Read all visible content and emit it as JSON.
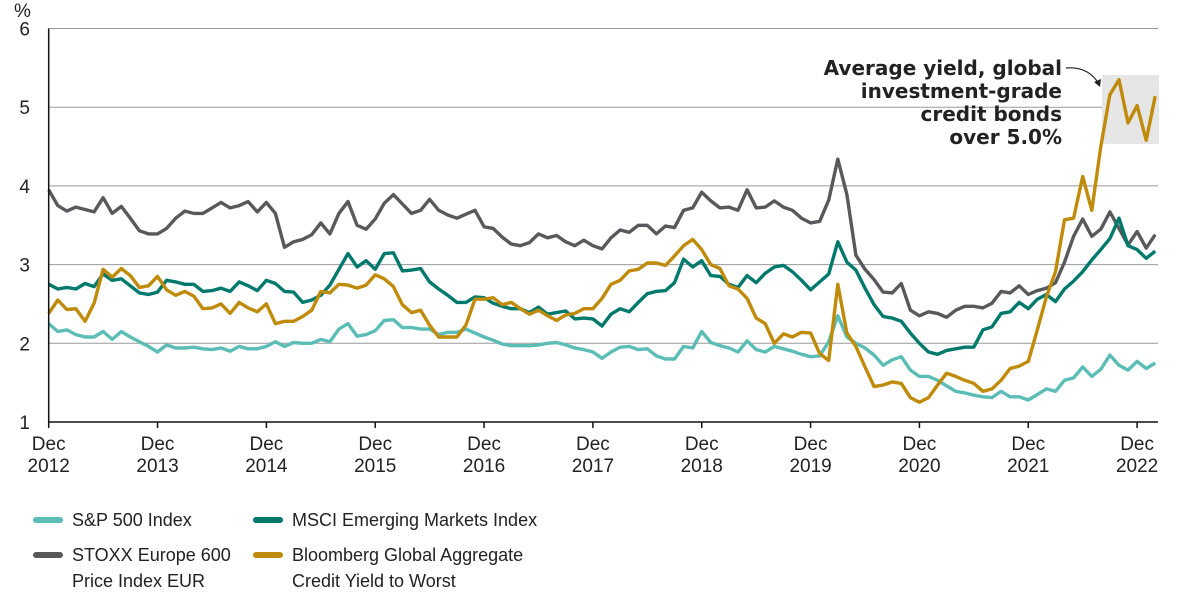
{
  "chart_data": {
    "type": "line",
    "ylabel": "%",
    "ylim": [
      1,
      6
    ],
    "yticks": [
      "1",
      "2",
      "3",
      "4",
      "5",
      "6"
    ],
    "grid": true,
    "x_start": "2012-12",
    "frequency": "monthly",
    "xticks": [
      {
        "line1": "Dec",
        "line2": "2012"
      },
      {
        "line1": "Dec",
        "line2": "2013"
      },
      {
        "line1": "Dec",
        "line2": "2014"
      },
      {
        "line1": "Dec",
        "line2": "2015"
      },
      {
        "line1": "Dec",
        "line2": "2016"
      },
      {
        "line1": "Dec",
        "line2": "2017"
      },
      {
        "line1": "Dec",
        "line2": "2018"
      },
      {
        "line1": "Dec",
        "line2": "2019"
      },
      {
        "line1": "Dec",
        "line2": "2020"
      },
      {
        "line1": "Dec",
        "line2": "2021"
      },
      {
        "line1": "Dec",
        "line2": "2022"
      }
    ],
    "legend_placement": "bottom",
    "series": [
      {
        "name": "S&P 500 Index",
        "color": "#5bbdb5",
        "values": [
          2.25,
          2.15,
          2.17,
          2.11,
          2.08,
          2.08,
          2.15,
          2.05,
          2.15,
          2.08,
          2.02,
          1.96,
          1.89,
          1.98,
          1.94,
          1.94,
          1.95,
          1.93,
          1.92,
          1.94,
          1.9,
          1.96,
          1.93,
          1.93,
          1.96,
          2.02,
          1.96,
          2.01,
          2.0,
          2.0,
          2.05,
          2.02,
          2.18,
          2.25,
          2.09,
          2.11,
          2.16,
          2.29,
          2.3,
          2.2,
          2.2,
          2.18,
          2.18,
          2.11,
          2.14,
          2.14,
          2.18,
          2.13,
          2.08,
          2.04,
          1.99,
          1.97,
          1.97,
          1.97,
          1.98,
          2.0,
          2.01,
          1.98,
          1.94,
          1.92,
          1.89,
          1.81,
          1.89,
          1.95,
          1.96,
          1.92,
          1.93,
          1.84,
          1.8,
          1.8,
          1.96,
          1.94,
          2.15,
          2.01,
          1.97,
          1.94,
          1.89,
          2.03,
          1.92,
          1.89,
          1.96,
          1.93,
          1.9,
          1.86,
          1.83,
          1.84,
          2.02,
          2.35,
          2.08,
          2.0,
          1.94,
          1.85,
          1.72,
          1.79,
          1.83,
          1.66,
          1.58,
          1.58,
          1.53,
          1.46,
          1.39,
          1.37,
          1.34,
          1.32,
          1.31,
          1.39,
          1.32,
          1.32,
          1.28,
          1.35,
          1.42,
          1.39,
          1.53,
          1.56,
          1.7,
          1.58,
          1.67,
          1.85,
          1.72,
          1.66,
          1.77,
          1.68,
          1.75
        ]
      },
      {
        "name": "STOXX Europe 600\nPrice Index EUR",
        "color": "#58595b",
        "values": [
          3.95,
          3.75,
          3.68,
          3.73,
          3.7,
          3.67,
          3.85,
          3.65,
          3.74,
          3.59,
          3.43,
          3.39,
          3.39,
          3.46,
          3.59,
          3.68,
          3.65,
          3.65,
          3.72,
          3.79,
          3.72,
          3.75,
          3.8,
          3.67,
          3.79,
          3.65,
          3.22,
          3.29,
          3.32,
          3.38,
          3.53,
          3.39,
          3.65,
          3.8,
          3.5,
          3.45,
          3.58,
          3.78,
          3.89,
          3.77,
          3.65,
          3.69,
          3.83,
          3.69,
          3.63,
          3.59,
          3.64,
          3.69,
          3.48,
          3.46,
          3.35,
          3.26,
          3.24,
          3.28,
          3.39,
          3.34,
          3.37,
          3.29,
          3.24,
          3.31,
          3.24,
          3.2,
          3.34,
          3.44,
          3.41,
          3.5,
          3.5,
          3.39,
          3.49,
          3.47,
          3.69,
          3.72,
          3.92,
          3.81,
          3.72,
          3.73,
          3.69,
          3.95,
          3.72,
          3.73,
          3.81,
          3.73,
          3.69,
          3.59,
          3.53,
          3.55,
          3.82,
          4.34,
          3.89,
          3.12,
          2.94,
          2.81,
          2.65,
          2.64,
          2.76,
          2.42,
          2.35,
          2.4,
          2.38,
          2.33,
          2.42,
          2.47,
          2.47,
          2.45,
          2.51,
          2.66,
          2.64,
          2.73,
          2.62,
          2.67,
          2.7,
          2.77,
          3.03,
          3.36,
          3.58,
          3.36,
          3.45,
          3.67,
          3.46,
          3.25,
          3.42,
          3.21,
          3.38
        ]
      },
      {
        "name": "MSCI Emerging Markets Index",
        "color": "#00796d",
        "values": [
          2.75,
          2.69,
          2.71,
          2.69,
          2.76,
          2.72,
          2.88,
          2.8,
          2.82,
          2.73,
          2.64,
          2.62,
          2.65,
          2.8,
          2.78,
          2.75,
          2.75,
          2.66,
          2.67,
          2.7,
          2.66,
          2.78,
          2.73,
          2.67,
          2.8,
          2.76,
          2.66,
          2.65,
          2.52,
          2.55,
          2.61,
          2.74,
          2.94,
          3.14,
          2.97,
          3.05,
          2.94,
          3.14,
          3.15,
          2.92,
          2.93,
          2.95,
          2.78,
          2.69,
          2.61,
          2.52,
          2.52,
          2.59,
          2.58,
          2.51,
          2.47,
          2.44,
          2.44,
          2.39,
          2.46,
          2.37,
          2.39,
          2.41,
          2.31,
          2.32,
          2.31,
          2.22,
          2.37,
          2.44,
          2.4,
          2.52,
          2.63,
          2.66,
          2.67,
          2.77,
          3.07,
          2.97,
          3.05,
          2.86,
          2.85,
          2.75,
          2.71,
          2.86,
          2.77,
          2.89,
          2.97,
          2.99,
          2.91,
          2.8,
          2.68,
          2.78,
          2.88,
          3.29,
          3.03,
          2.93,
          2.7,
          2.49,
          2.34,
          2.32,
          2.28,
          2.13,
          2.0,
          1.89,
          1.86,
          1.91,
          1.93,
          1.95,
          1.95,
          2.17,
          2.21,
          2.38,
          2.4,
          2.52,
          2.44,
          2.56,
          2.62,
          2.53,
          2.69,
          2.79,
          2.91,
          3.06,
          3.19,
          3.33,
          3.59,
          3.24,
          3.19,
          3.08,
          3.17
        ]
      },
      {
        "name": "Bloomberg Global Aggregate\nCredit Yield to Worst",
        "color": "#c08a0a",
        "values": [
          2.38,
          2.55,
          2.43,
          2.44,
          2.28,
          2.51,
          2.94,
          2.84,
          2.95,
          2.86,
          2.71,
          2.73,
          2.85,
          2.68,
          2.61,
          2.66,
          2.6,
          2.44,
          2.45,
          2.5,
          2.38,
          2.52,
          2.45,
          2.4,
          2.5,
          2.25,
          2.28,
          2.28,
          2.34,
          2.42,
          2.66,
          2.64,
          2.75,
          2.74,
          2.7,
          2.74,
          2.87,
          2.82,
          2.72,
          2.49,
          2.39,
          2.42,
          2.23,
          2.08,
          2.08,
          2.08,
          2.23,
          2.56,
          2.56,
          2.58,
          2.49,
          2.52,
          2.44,
          2.37,
          2.42,
          2.35,
          2.29,
          2.36,
          2.38,
          2.44,
          2.44,
          2.57,
          2.75,
          2.8,
          2.92,
          2.94,
          3.02,
          3.02,
          2.99,
          3.11,
          3.24,
          3.32,
          3.19,
          3.0,
          2.95,
          2.73,
          2.69,
          2.57,
          2.32,
          2.25,
          2.0,
          2.12,
          2.08,
          2.14,
          2.13,
          1.87,
          1.78,
          2.75,
          2.13,
          1.96,
          1.7,
          1.45,
          1.47,
          1.51,
          1.49,
          1.31,
          1.25,
          1.31,
          1.47,
          1.62,
          1.58,
          1.53,
          1.49,
          1.39,
          1.42,
          1.53,
          1.68,
          1.71,
          1.77,
          2.17,
          2.59,
          2.91,
          3.57,
          3.59,
          4.12,
          3.69,
          4.5,
          5.16,
          5.35,
          4.8,
          5.02,
          4.58,
          5.14
        ]
      }
    ],
    "annotation": {
      "lines": [
        "Average yield, global",
        "investment-grade",
        "credit bonds",
        "over 5.0%"
      ],
      "highlight_color": "#e6e6e6"
    }
  }
}
